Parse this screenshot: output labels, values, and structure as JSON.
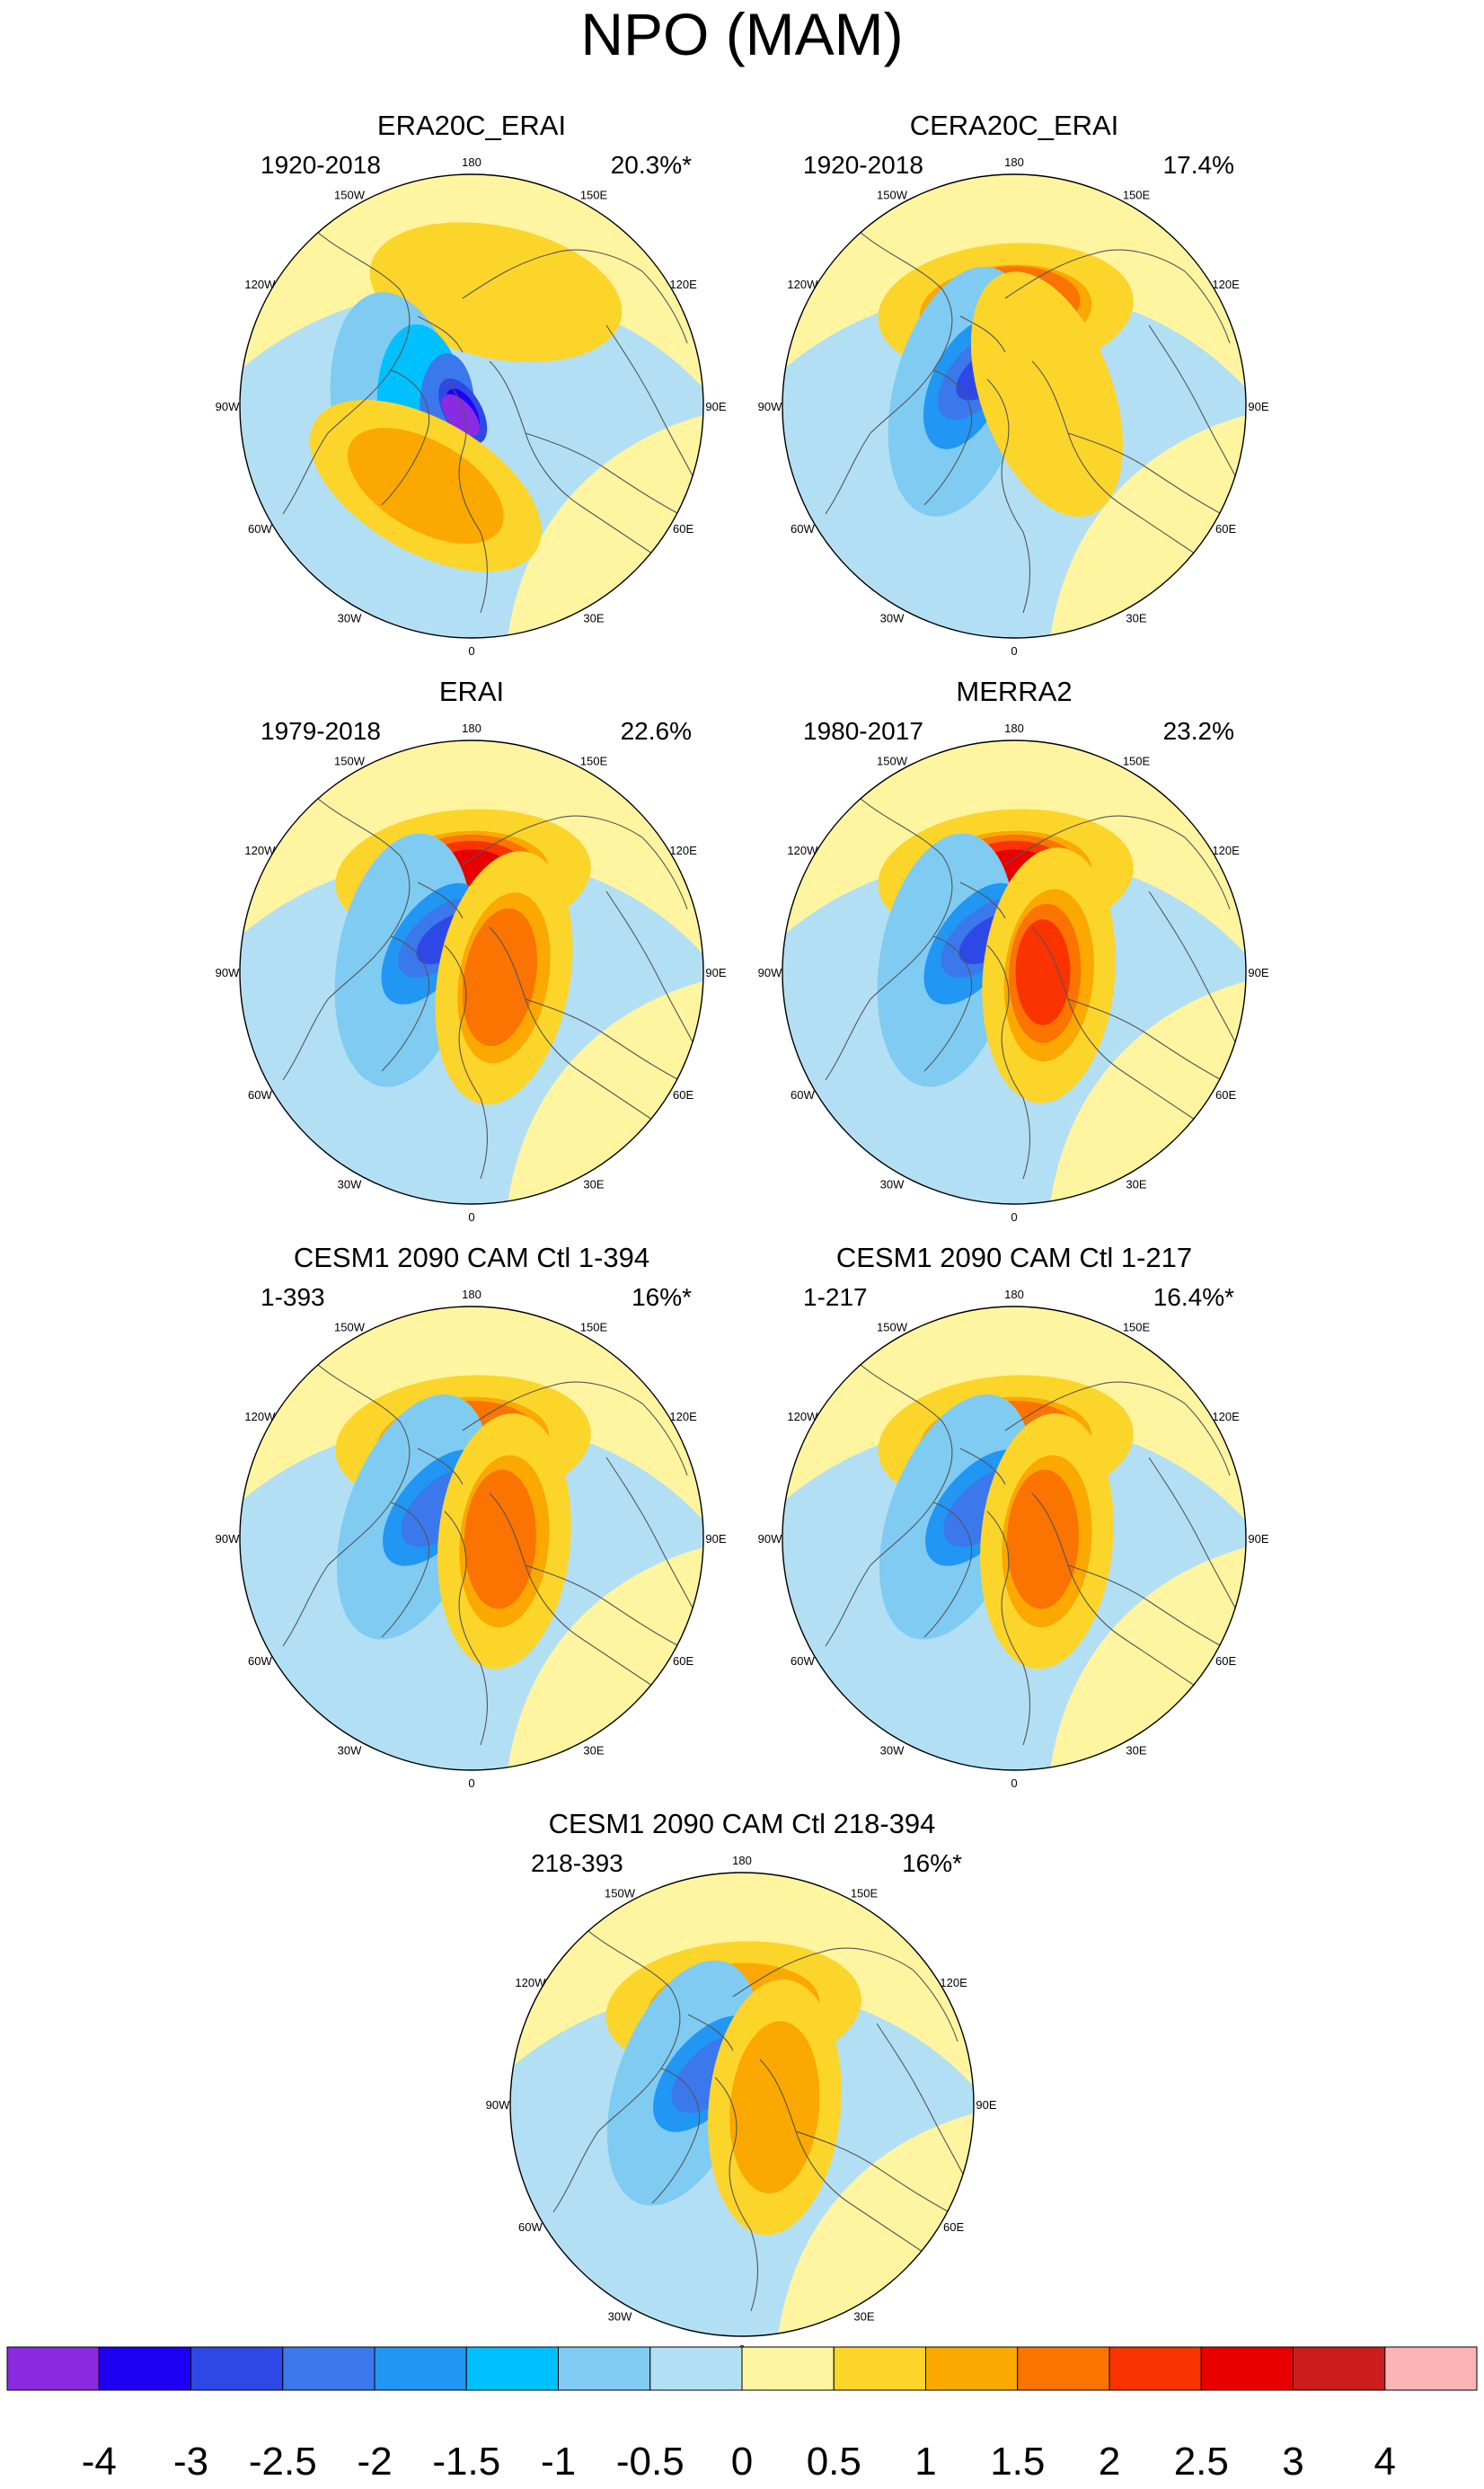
{
  "title": "NPO (MAM)",
  "chart_data": {
    "type": "contour-map",
    "projection": "north polar stereographic",
    "field": "NPO regression pattern (MAM)",
    "colorbar": {
      "levels": [
        "-4",
        "-3",
        "-2.5",
        "-2",
        "-1.5",
        "-1",
        "-0.5",
        "0",
        "0.5",
        "1",
        "1.5",
        "2",
        "2.5",
        "3",
        "4"
      ],
      "colors": [
        "#8a2be2",
        "#1e00f5",
        "#2e48e6",
        "#3a78ec",
        "#2196f3",
        "#00c0ff",
        "#7fcbf2",
        "#b3dff4",
        "#fff5a0",
        "#fcd52b",
        "#fba800",
        "#fb7300",
        "#fb3300",
        "#e80000",
        "#cc1c1c",
        "#fcb4b4"
      ]
    },
    "longitude_labels": [
      "180",
      "150W",
      "150E",
      "120W",
      "120E",
      "90W",
      "90E",
      "60W",
      "60E",
      "30W",
      "30E",
      "0"
    ],
    "panels": [
      {
        "title": "ERA20C_ERAI",
        "years": "1920-2018",
        "variance": "20.3%*",
        "anomalies": [
          {
            "lat": 37,
            "lon": 168,
            "level": 1,
            "sign": 1
          },
          {
            "lat": 55,
            "lon": -80,
            "level": 1,
            "sign": -1
          },
          {
            "lat": 66,
            "lon": -85,
            "level": 2,
            "sign": -1
          },
          {
            "lat": 78,
            "lon": -90,
            "level": 4,
            "sign": -1
          },
          {
            "lat": 85,
            "lon": -60,
            "level": 5,
            "sign": -1
          },
          {
            "lat": 85,
            "lon": -60,
            "level": 6,
            "sign": -1
          },
          {
            "lat": 83,
            "lon": -50,
            "level": 7,
            "sign": -1
          },
          {
            "lat": 47,
            "lon": -30,
            "level": 1,
            "sign": 1
          },
          {
            "lat": 47,
            "lon": -30,
            "level": 2,
            "sign": 1
          }
        ]
      },
      {
        "title": "CERA20C_ERAI",
        "years": "1920-2018",
        "variance": "17.4%",
        "anomalies": [
          {
            "lat": 45,
            "lon": -175,
            "level": 1,
            "sign": 1
          },
          {
            "lat": 45,
            "lon": -175,
            "level": 2,
            "sign": 1
          },
          {
            "lat": 42,
            "lon": -178,
            "level": 3,
            "sign": 1
          },
          {
            "lat": 63,
            "lon": -105,
            "level": 1,
            "sign": -1
          },
          {
            "lat": 65,
            "lon": -115,
            "level": 3,
            "sign": -1
          },
          {
            "lat": 67,
            "lon": -130,
            "level": 4,
            "sign": -1
          },
          {
            "lat": 69,
            "lon": -140,
            "level": 5,
            "sign": -1
          },
          {
            "lat": 73,
            "lon": 110,
            "level": 1,
            "sign": 1
          }
        ]
      },
      {
        "title": "ERAI",
        "years": "1979-2018",
        "variance": "22.6%",
        "anomalies": [
          {
            "lat": 45,
            "lon": -175,
            "level": 1,
            "sign": 1
          },
          {
            "lat": 45,
            "lon": -175,
            "level": 2,
            "sign": 1
          },
          {
            "lat": 43,
            "lon": -178,
            "level": 3,
            "sign": 1
          },
          {
            "lat": 42,
            "lon": -180,
            "level": 4,
            "sign": 1
          },
          {
            "lat": 42,
            "lon": -180,
            "level": 5,
            "sign": 1
          },
          {
            "lat": 57,
            "lon": -100,
            "level": 1,
            "sign": -1
          },
          {
            "lat": 66,
            "lon": -125,
            "level": 3,
            "sign": -1
          },
          {
            "lat": 68,
            "lon": -140,
            "level": 4,
            "sign": -1
          },
          {
            "lat": 70,
            "lon": -145,
            "level": 5,
            "sign": -1
          },
          {
            "lat": 74,
            "lon": 80,
            "level": 1,
            "sign": 1
          },
          {
            "lat": 74,
            "lon": 80,
            "level": 2,
            "sign": 1
          },
          {
            "lat": 76,
            "lon": 80,
            "level": 3,
            "sign": 1
          }
        ]
      },
      {
        "title": "MERRA2",
        "years": "1980-2017",
        "variance": "23.2%",
        "anomalies": [
          {
            "lat": 45,
            "lon": -175,
            "level": 1,
            "sign": 1
          },
          {
            "lat": 45,
            "lon": -175,
            "level": 2,
            "sign": 1
          },
          {
            "lat": 43,
            "lon": -178,
            "level": 3,
            "sign": 1
          },
          {
            "lat": 42,
            "lon": -180,
            "level": 4,
            "sign": 1
          },
          {
            "lat": 42,
            "lon": -180,
            "level": 5,
            "sign": 1
          },
          {
            "lat": 57,
            "lon": -100,
            "level": 1,
            "sign": -1
          },
          {
            "lat": 66,
            "lon": -125,
            "level": 3,
            "sign": -1
          },
          {
            "lat": 68,
            "lon": -140,
            "level": 4,
            "sign": -1
          },
          {
            "lat": 70,
            "lon": -145,
            "level": 5,
            "sign": -1
          },
          {
            "lat": 73,
            "lon": 85,
            "level": 1,
            "sign": 1
          },
          {
            "lat": 73,
            "lon": 85,
            "level": 2,
            "sign": 1
          },
          {
            "lat": 75,
            "lon": 88,
            "level": 3,
            "sign": 1
          },
          {
            "lat": 76,
            "lon": 90,
            "level": 4,
            "sign": 1
          }
        ]
      },
      {
        "title": "CESM1 2090 CAM Ctl 1-394",
        "years": "1-393",
        "variance": "16%*",
        "anomalies": [
          {
            "lat": 45,
            "lon": -175,
            "level": 1,
            "sign": 1
          },
          {
            "lat": 45,
            "lon": -175,
            "level": 2,
            "sign": 1
          },
          {
            "lat": 43,
            "lon": -178,
            "level": 3,
            "sign": 1
          },
          {
            "lat": 60,
            "lon": -110,
            "level": 1,
            "sign": -1
          },
          {
            "lat": 67,
            "lon": -130,
            "level": 3,
            "sign": -1
          },
          {
            "lat": 70,
            "lon": -140,
            "level": 4,
            "sign": -1
          },
          {
            "lat": 74,
            "lon": 85,
            "level": 1,
            "sign": 1
          },
          {
            "lat": 74,
            "lon": 85,
            "level": 2,
            "sign": 1
          },
          {
            "lat": 76,
            "lon": 88,
            "level": 3,
            "sign": 1
          }
        ]
      },
      {
        "title": "CESM1 2090 CAM Ctl 1-217",
        "years": "1-217",
        "variance": "16.4%*",
        "anomalies": [
          {
            "lat": 45,
            "lon": -175,
            "level": 1,
            "sign": 1
          },
          {
            "lat": 45,
            "lon": -175,
            "level": 2,
            "sign": 1
          },
          {
            "lat": 43,
            "lon": -178,
            "level": 3,
            "sign": 1
          },
          {
            "lat": 60,
            "lon": -110,
            "level": 1,
            "sign": -1
          },
          {
            "lat": 67,
            "lon": -130,
            "level": 3,
            "sign": -1
          },
          {
            "lat": 70,
            "lon": -140,
            "level": 4,
            "sign": -1
          },
          {
            "lat": 74,
            "lon": 85,
            "level": 1,
            "sign": 1
          },
          {
            "lat": 74,
            "lon": 85,
            "level": 2,
            "sign": 1
          },
          {
            "lat": 76,
            "lon": 88,
            "level": 3,
            "sign": 1
          }
        ]
      },
      {
        "title": "CESM1 2090 CAM Ctl 218-394",
        "years": "218-393",
        "variance": "16%*",
        "anomalies": [
          {
            "lat": 45,
            "lon": -175,
            "level": 1,
            "sign": 1
          },
          {
            "lat": 45,
            "lon": -175,
            "level": 2,
            "sign": 1
          },
          {
            "lat": 60,
            "lon": -110,
            "level": 1,
            "sign": -1
          },
          {
            "lat": 67,
            "lon": -130,
            "level": 3,
            "sign": -1
          },
          {
            "lat": 70,
            "lon": -140,
            "level": 4,
            "sign": -1
          },
          {
            "lat": 74,
            "lon": 85,
            "level": 1,
            "sign": 1
          },
          {
            "lat": 74,
            "lon": 85,
            "level": 2,
            "sign": 1
          }
        ]
      }
    ]
  }
}
